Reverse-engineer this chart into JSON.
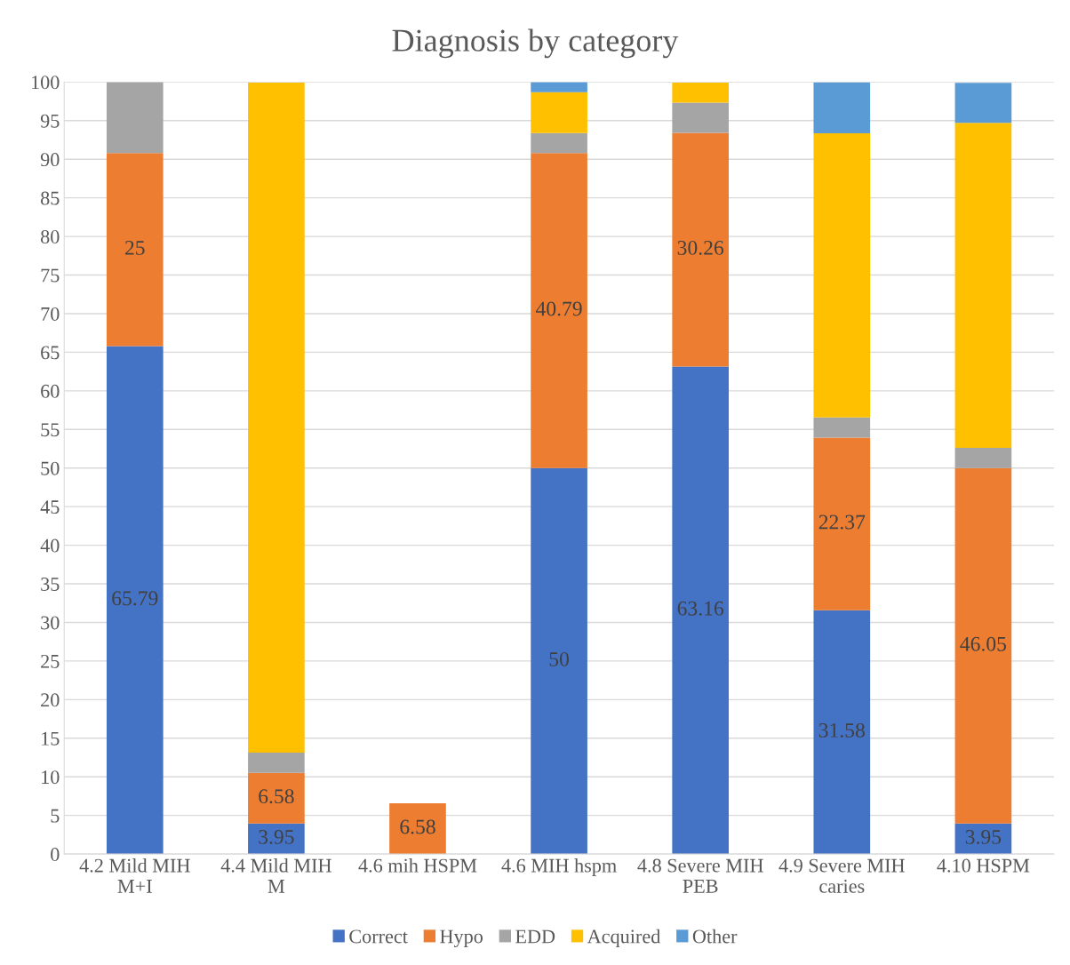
{
  "chart_data": {
    "type": "bar",
    "title": "Diagnosis by category",
    "stacked": true,
    "categories": [
      "4.2 Mild MIH\nM+I",
      "4.4 Mild MIH\nM",
      "4.6 mih HSPM",
      "4.6 MIH hspm",
      "4.8 Severe MIH\nPEB",
      "4.9 Severe MIH\ncaries",
      "4.10 HSPM"
    ],
    "series": [
      {
        "name": "Correct",
        "color": "#4472c4",
        "values": [
          65.79,
          3.95,
          0,
          50,
          63.16,
          31.58,
          3.95
        ],
        "value_labels": [
          "65.79",
          "3.95",
          null,
          "50",
          "63.16",
          "31.58",
          "3.95"
        ]
      },
      {
        "name": "Hypo",
        "color": "#ed7d31",
        "values": [
          25,
          6.58,
          6.58,
          40.79,
          30.26,
          22.37,
          46.05
        ],
        "value_labels": [
          "25",
          "6.58",
          "6.58",
          "40.79",
          "30.26",
          "22.37",
          "46.05"
        ]
      },
      {
        "name": "EDD",
        "color": "#a5a5a5",
        "values": [
          9.2,
          2.6,
          0,
          2.6,
          3.9,
          2.6,
          2.6
        ]
      },
      {
        "name": "Acquired",
        "color": "#ffc000",
        "values": [
          0,
          86.8,
          0,
          5.3,
          2.6,
          36.8,
          42.1
        ]
      },
      {
        "name": "Other",
        "color": "#5b9bd5",
        "values": [
          0,
          0,
          0,
          1.3,
          0,
          6.6,
          5.2
        ]
      }
    ],
    "ylim": [
      0,
      100
    ],
    "yticks": [
      0,
      5,
      10,
      15,
      20,
      25,
      30,
      35,
      40,
      45,
      50,
      55,
      60,
      65,
      70,
      75,
      80,
      85,
      90,
      95,
      100
    ],
    "grid": "y",
    "legend": "bottom"
  }
}
